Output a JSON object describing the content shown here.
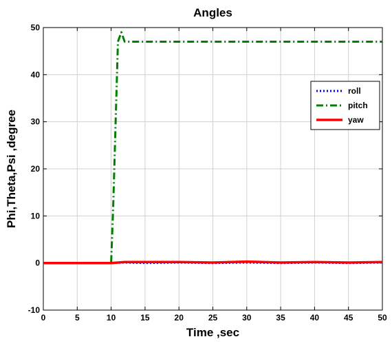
{
  "chart_data": {
    "type": "line",
    "title": "Angles",
    "xlabel": "Time ,sec",
    "ylabel": "Phi,Theta,Psi ,degree",
    "xlim": [
      0,
      50
    ],
    "ylim": [
      -10,
      50
    ],
    "xticks": [
      "0",
      "5",
      "10",
      "15",
      "20",
      "25",
      "30",
      "35",
      "40",
      "45",
      "50"
    ],
    "yticks": [
      "-10",
      "0",
      "10",
      "20",
      "30",
      "40",
      "50"
    ],
    "grid": true,
    "legend_position": "right",
    "series": [
      {
        "name": "roll",
        "color": "#0000ff",
        "style": "dotted",
        "x": [
          0,
          10,
          12,
          15,
          20,
          25,
          30,
          35,
          40,
          45,
          50
        ],
        "y": [
          0,
          0,
          0.1,
          0,
          0.1,
          0,
          0.1,
          0,
          0.1,
          0,
          0.1
        ]
      },
      {
        "name": "pitch",
        "color": "#008000",
        "style": "dashdot",
        "x": [
          0,
          10,
          10.3,
          11,
          11.5,
          12,
          15,
          20,
          30,
          40,
          50
        ],
        "y": [
          0,
          0,
          12,
          47,
          49,
          47,
          47,
          47,
          47,
          47,
          47
        ]
      },
      {
        "name": "yaw",
        "color": "#ff0000",
        "style": "solid",
        "x": [
          0,
          5,
          10,
          12,
          15,
          20,
          25,
          30,
          35,
          40,
          45,
          50
        ],
        "y": [
          0,
          0,
          0,
          0.2,
          0.2,
          0.2,
          0.1,
          0.3,
          0.1,
          0.2,
          0.1,
          0.2
        ]
      }
    ]
  }
}
